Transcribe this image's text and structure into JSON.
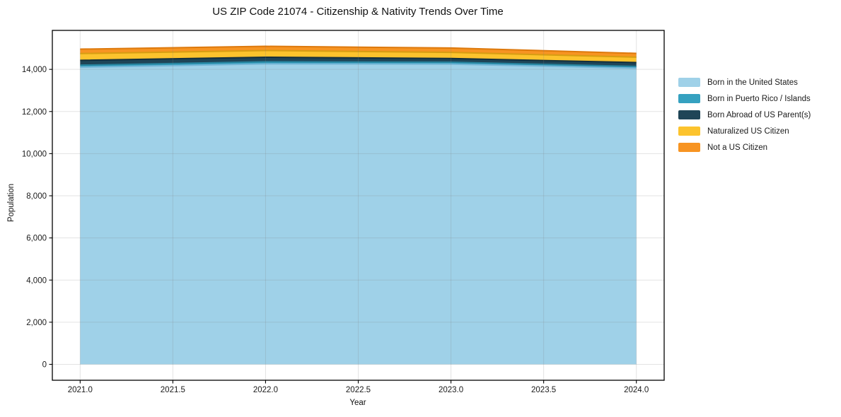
{
  "chart_data": {
    "type": "area",
    "stacked": true,
    "title": "US ZIP Code 21074 - Citizenship & Nativity Trends Over Time",
    "xlabel": "Year",
    "ylabel": "Population",
    "x": [
      2021,
      2022,
      2023,
      2024
    ],
    "series": [
      {
        "name": "Born in the United States",
        "values": [
          14100,
          14260,
          14250,
          14060
        ],
        "color": "#9fd1e8",
        "edge_color": "#74b5d6"
      },
      {
        "name": "Born in Puerto Rico / Islands",
        "values": [
          100,
          100,
          90,
          80
        ],
        "color": "#35a1c0",
        "edge_color": "#27839e"
      },
      {
        "name": "Born Abroad of US Parent(s)",
        "values": [
          230,
          215,
          175,
          185
        ],
        "color": "#1f4557",
        "edge_color": "#142f3c"
      },
      {
        "name": "Naturalized US Citizen",
        "values": [
          320,
          320,
          290,
          255
        ],
        "color": "#fcc32d",
        "edge_color": "#d79d12"
      },
      {
        "name": "Not a US Citizen",
        "values": [
          210,
          200,
          210,
          180
        ],
        "color": "#f79422",
        "edge_color": "#dd790d"
      }
    ],
    "xlim": [
      2020.85,
      2024.15
    ],
    "ylim": [
      -755,
      15850
    ],
    "xticks": {
      "values": [
        2021.0,
        2021.5,
        2022.0,
        2022.5,
        2023.0,
        2023.5,
        2024.0
      ],
      "labels": [
        "2021.0",
        "2021.5",
        "2022.0",
        "2022.5",
        "2023.0",
        "2023.5",
        "2024.0"
      ]
    },
    "yticks": {
      "values": [
        0,
        2000,
        4000,
        6000,
        8000,
        10000,
        12000,
        14000
      ],
      "labels": [
        "0",
        "2,000",
        "4,000",
        "6,000",
        "8,000",
        "10,000",
        "12,000",
        "14,000"
      ]
    },
    "grid": true,
    "legend_position": "right-outside",
    "style": {
      "grid_color": "#808080",
      "grid_alpha": 0.22,
      "spine_color": "#000000",
      "tick_text_color": "#1a1a1a",
      "background": "#ffffff"
    }
  }
}
